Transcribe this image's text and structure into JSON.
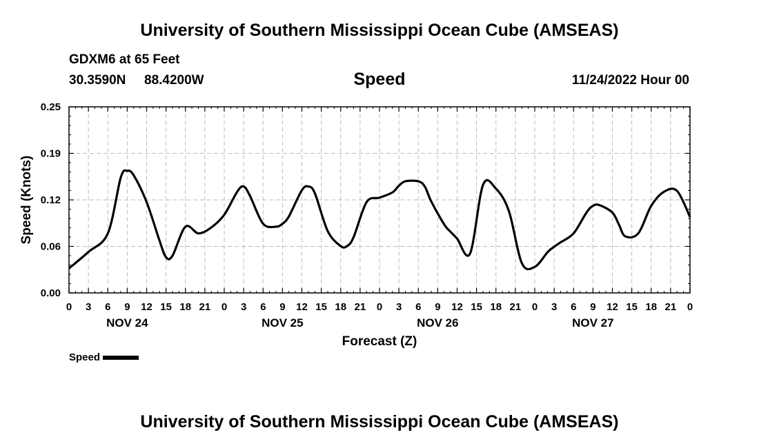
{
  "header": {
    "top_title": "University of Southern Mississippi Ocean Cube (AMSEAS)",
    "station": "GDXM6 at 65 Feet",
    "latitude": "30.3590N",
    "longitude": "88.4200W",
    "timestamp": "11/24/2022 Hour 00",
    "bottom_title": "University of Southern Mississippi Ocean Cube (AMSEAS)"
  },
  "legend": {
    "label": "Speed",
    "color": "#000000"
  },
  "chart_data": {
    "type": "line",
    "title": "Speed",
    "xlabel": "Forecast (Z)",
    "ylabel": "Speed (Knots)",
    "xlim": [
      0,
      96
    ],
    "ylim": [
      0,
      0.25
    ],
    "grid": true,
    "y_ticks": [
      "0.00",
      "0.06",
      "0.12",
      "0.19",
      "0.25"
    ],
    "y_tick_values": [
      0,
      0.0625,
      0.125,
      0.1875,
      0.25
    ],
    "x_tick_labels": [
      "0",
      "3",
      "6",
      "9",
      "12",
      "15",
      "18",
      "21",
      "0",
      "3",
      "6",
      "9",
      "12",
      "15",
      "18",
      "21",
      "0",
      "3",
      "6",
      "9",
      "12",
      "15",
      "18",
      "21",
      "0",
      "3",
      "6",
      "9",
      "12",
      "15",
      "18",
      "21",
      "0"
    ],
    "day_labels": [
      {
        "label": "NOV 24",
        "hour": 9
      },
      {
        "label": "NOV 25",
        "hour": 33
      },
      {
        "label": "NOV 26",
        "hour": 57
      },
      {
        "label": "NOV 27",
        "hour": 81
      }
    ],
    "series": [
      {
        "name": "Speed",
        "x": [
          0,
          3,
          6,
          8,
          9,
          10,
          12,
          14,
          15,
          16,
          18,
          20,
          22,
          24,
          26,
          27,
          28,
          30,
          32,
          33,
          34,
          36,
          37,
          38,
          40,
          42,
          43,
          44,
          46,
          48,
          50,
          51,
          52,
          54,
          55,
          56,
          58,
          59,
          60,
          62,
          64,
          66,
          68,
          70,
          72,
          74,
          75,
          76,
          78,
          80,
          81,
          82,
          84,
          85,
          86,
          88,
          90,
          92,
          94,
          96
        ],
        "values": [
          0.033,
          0.055,
          0.08,
          0.155,
          0.164,
          0.158,
          0.122,
          0.07,
          0.048,
          0.05,
          0.089,
          0.08,
          0.088,
          0.105,
          0.136,
          0.143,
          0.13,
          0.093,
          0.089,
          0.093,
          0.103,
          0.138,
          0.143,
          0.134,
          0.083,
          0.063,
          0.063,
          0.075,
          0.122,
          0.128,
          0.135,
          0.144,
          0.15,
          0.15,
          0.143,
          0.123,
          0.092,
          0.082,
          0.073,
          0.053,
          0.145,
          0.14,
          0.11,
          0.04,
          0.035,
          0.055,
          0.062,
          0.068,
          0.08,
          0.108,
          0.117,
          0.118,
          0.108,
          0.092,
          0.076,
          0.08,
          0.117,
          0.136,
          0.137,
          0.102
        ]
      }
    ]
  }
}
